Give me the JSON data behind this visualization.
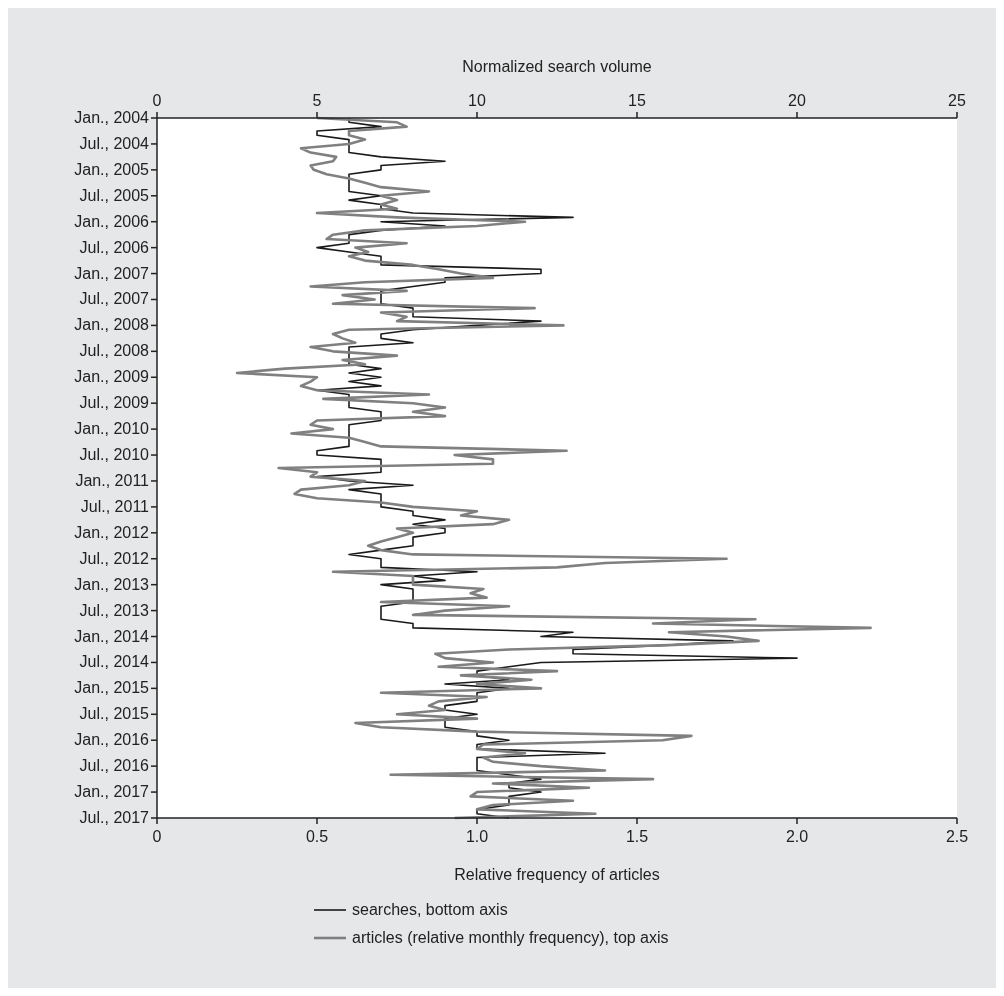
{
  "chart_data": {
    "type": "line",
    "orientation": "horizontal",
    "xlabel": "Relative frequency of articles",
    "x2label": "Normalized search volume",
    "categories": [
      "Jan., 2004",
      null,
      null,
      null,
      null,
      null,
      "Jul., 2004",
      null,
      null,
      null,
      null,
      null,
      "Jan., 2005",
      null,
      null,
      null,
      null,
      null,
      "Jul., 2005",
      null,
      null,
      null,
      null,
      null,
      "Jan., 2006",
      null,
      null,
      null,
      null,
      null,
      "Jul., 2006",
      null,
      null,
      null,
      null,
      null,
      "Jan., 2007",
      null,
      null,
      null,
      null,
      null,
      "Jul., 2007",
      null,
      null,
      null,
      null,
      null,
      "Jan., 2008",
      null,
      null,
      null,
      null,
      null,
      "Jul., 2008",
      null,
      null,
      null,
      null,
      null,
      "Jan., 2009",
      null,
      null,
      null,
      null,
      null,
      "Jul., 2009",
      null,
      null,
      null,
      null,
      null,
      "Jan., 2010",
      null,
      null,
      null,
      null,
      null,
      "Jul., 2010",
      null,
      null,
      null,
      null,
      null,
      "Jan., 2011",
      null,
      null,
      null,
      null,
      null,
      "Jul., 2011",
      null,
      null,
      null,
      null,
      null,
      "Jan., 2012",
      null,
      null,
      null,
      null,
      null,
      "Jul., 2012",
      null,
      null,
      null,
      null,
      null,
      "Jan., 2013",
      null,
      null,
      null,
      null,
      null,
      "Jul., 2013",
      null,
      null,
      null,
      null,
      null,
      "Jan., 2014",
      null,
      null,
      null,
      null,
      null,
      "Jul., 2014",
      null,
      null,
      null,
      null,
      null,
      "Jan., 2015",
      null,
      null,
      null,
      null,
      null,
      "Jul., 2015",
      null,
      null,
      null,
      null,
      null,
      "Jan., 2016",
      null,
      null,
      null,
      null,
      null,
      "Jul., 2016",
      null,
      null,
      null,
      null,
      null,
      "Jan., 2017",
      null,
      null,
      null,
      null,
      null,
      "Jul., 2017"
    ],
    "xlim": [
      0,
      2.5
    ],
    "xticks": [
      0,
      0.5,
      {
        "value": 1,
        "label": "1.0"
      },
      1.5,
      {
        "value": 2,
        "label": "2.0"
      },
      2.5
    ],
    "x2lim": [
      0,
      25
    ],
    "x2ticks": [
      0,
      5,
      10,
      15,
      20,
      25
    ],
    "legend": "bottom",
    "grid": false,
    "series": [
      {
        "name": "searches, bottom axis",
        "color": "#1a1a1a",
        "values": [
          0.6,
          0.6,
          0.7,
          0.5,
          0.5,
          0.6,
          0.6,
          0.6,
          0.6,
          0.7,
          0.9,
          0.7,
          0.7,
          0.6,
          0.6,
          0.6,
          0.6,
          0.6,
          0.7,
          0.6,
          0.7,
          0.7,
          0.8,
          1.3,
          0.7,
          0.9,
          0.7,
          0.6,
          0.6,
          0.6,
          0.5,
          0.6,
          0.7,
          0.7,
          0.7,
          1.2,
          1.2,
          0.9,
          0.9,
          0.8,
          0.7,
          0.7,
          0.7,
          0.7,
          0.8,
          0.8,
          0.8,
          1.2,
          1.0,
          0.8,
          0.7,
          0.7,
          0.8,
          0.6,
          0.6,
          0.6,
          0.6,
          0.6,
          0.7,
          0.6,
          0.7,
          0.6,
          0.7,
          0.5,
          0.6,
          0.6,
          0.6,
          0.6,
          0.7,
          0.7,
          0.7,
          0.6,
          0.6,
          0.6,
          0.6,
          0.6,
          0.6,
          0.5,
          0.5,
          0.7,
          0.7,
          0.7,
          0.7,
          0.5,
          0.6,
          0.8,
          0.6,
          0.7,
          0.7,
          0.7,
          0.7,
          0.8,
          0.8,
          0.9,
          0.8,
          0.9,
          0.9,
          0.8,
          0.8,
          0.8,
          0.7,
          0.6,
          0.7,
          0.7,
          0.7,
          1.0,
          0.8,
          0.9,
          0.7,
          0.8,
          0.8,
          0.8,
          0.8,
          0.7,
          0.7,
          0.7,
          0.7,
          0.8,
          0.8,
          1.3,
          1.2,
          1.8,
          1.6,
          1.3,
          1.3,
          2.0,
          1.2,
          1.1,
          1.0,
          1.0,
          1.1,
          0.9,
          1.1,
          1.0,
          1.0,
          1.0,
          0.9,
          0.9,
          1.0,
          0.9,
          0.9,
          0.9,
          1.0,
          1.0,
          1.1,
          1.0,
          1.0,
          1.4,
          1.0,
          1.0,
          1.0,
          1.0,
          1.1,
          1.2,
          1.1,
          1.1,
          1.2,
          1.1,
          1.1,
          1.1,
          1.0,
          1.0,
          1.1
        ]
      },
      {
        "name": "articles (relative monthly frequency), top axis",
        "color": "#808080",
        "axis": "x2",
        "values": [
          5.0,
          7.5,
          7.8,
          6.0,
          6.0,
          6.5,
          6.0,
          4.5,
          4.8,
          5.6,
          5.5,
          4.8,
          4.9,
          5.3,
          6.0,
          6.5,
          7.0,
          8.5,
          7.0,
          7.5,
          7.0,
          7.5,
          5.0,
          7.5,
          11.5,
          10.0,
          6.5,
          5.5,
          5.3,
          7.8,
          6.2,
          6.6,
          6.0,
          6.5,
          8.0,
          8.8,
          9.5,
          10.5,
          6.5,
          4.8,
          7.8,
          5.8,
          6.8,
          5.5,
          11.8,
          7.0,
          7.8,
          7.5,
          12.7,
          6.0,
          5.5,
          5.8,
          6.2,
          4.8,
          5.5,
          7.5,
          5.8,
          6.5,
          4.0,
          2.5,
          5.0,
          4.8,
          4.5,
          5.0,
          8.5,
          5.2,
          8.0,
          9.0,
          8.0,
          9.0,
          5.0,
          4.8,
          5.5,
          4.2,
          6.0,
          6.5,
          7.0,
          12.8,
          9.3,
          10.5,
          10.5,
          3.8,
          5.0,
          4.8,
          6.5,
          6.0,
          4.5,
          4.3,
          5.0,
          7.0,
          8.0,
          10.0,
          9.5,
          11.0,
          10.5,
          7.5,
          8.0,
          7.5,
          7.0,
          6.6,
          7.0,
          8.0,
          17.8,
          14.0,
          12.5,
          5.5,
          8.0,
          8.0,
          8.0,
          10.2,
          9.8,
          10.3,
          7.0,
          11.0,
          9.0,
          8.0,
          18.7,
          15.5,
          22.3,
          16.0,
          17.8,
          18.8,
          16.0,
          11.0,
          8.7,
          9.0,
          10.5,
          8.8,
          12.5,
          9.5,
          11.7,
          10.0,
          12.0,
          7.0,
          10.3,
          8.8,
          8.5,
          9.0,
          7.5,
          10.0,
          6.2,
          7.0,
          10.0,
          16.7,
          15.8,
          10.2,
          10.0,
          11.5,
          10.2,
          10.5,
          12.0,
          14.0,
          7.3,
          15.5,
          10.5,
          13.5,
          10.0,
          9.8,
          13.0,
          10.5,
          10.0,
          13.7,
          9.3
        ]
      }
    ]
  }
}
